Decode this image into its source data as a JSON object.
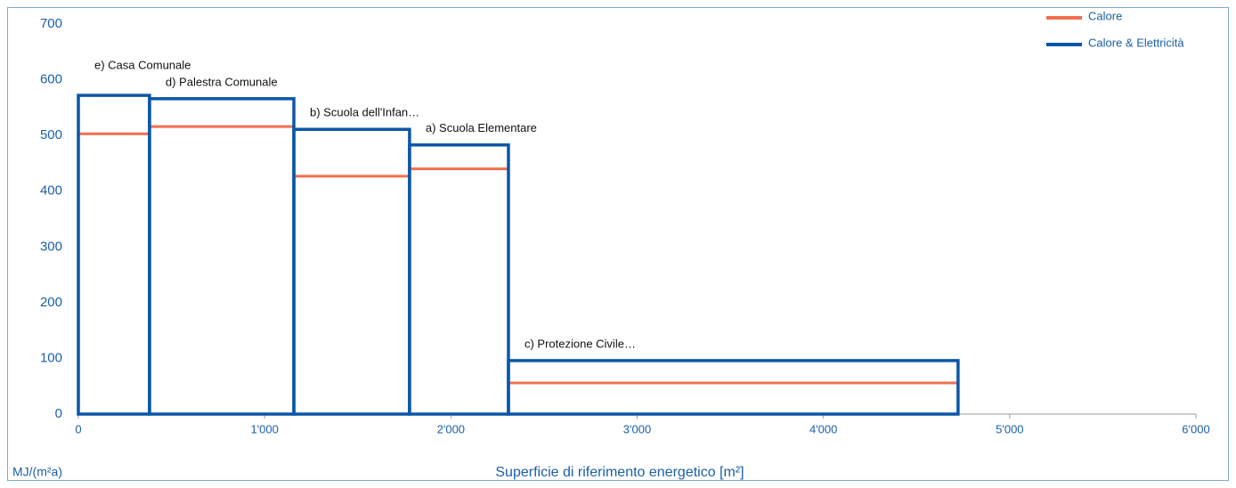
{
  "chart_data": {
    "type": "variable-width-bar",
    "x_label": "Superficie di riferimento energetico [m²]",
    "y_label": "MJ/(m²a)",
    "categories": [
      "e) Casa Comunale",
      "d) Palestra Comunale",
      "b) Scuola dell'Infan…",
      "a) Scuola Elementare",
      "c) Protezione Civile…"
    ],
    "widths": [
      382,
      775,
      621,
      531,
      2414
    ],
    "series": [
      {
        "name": "Calore",
        "color": "#f26f4f",
        "values": [
          503,
          516,
          427,
          440,
          56
        ]
      },
      {
        "name": "Calore & Elettricità",
        "color": "#0b56a8",
        "values": [
          572,
          566,
          511,
          483,
          96
        ]
      }
    ],
    "xlim": [
      0,
      6000
    ],
    "xticks": [
      0,
      {
        "value": 1000,
        "label": "1'000"
      },
      {
        "value": 2000,
        "label": "2'000"
      },
      {
        "value": 3000,
        "label": "3'000"
      },
      {
        "value": 4000,
        "label": "4'000"
      },
      {
        "value": 5000,
        "label": "5'000"
      },
      {
        "value": 6000,
        "label": "6'000"
      }
    ],
    "ylim": [
      0,
      700
    ],
    "yticks": [
      0,
      100,
      200,
      300,
      400,
      500,
      600,
      700
    ],
    "grid": false,
    "legend": "top-right"
  }
}
